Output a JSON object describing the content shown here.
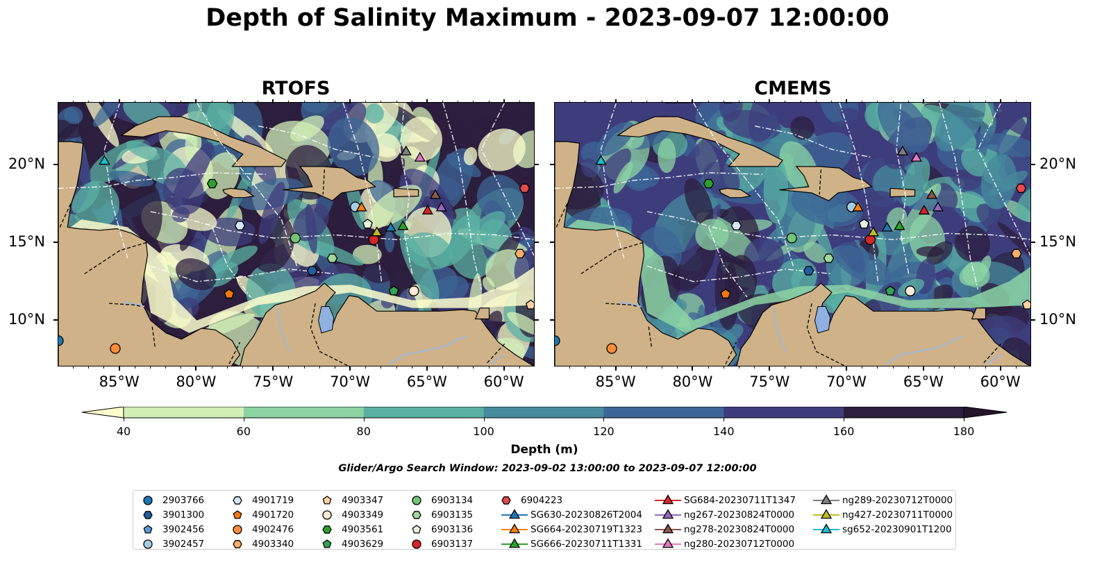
{
  "title": "Depth of Salinity Maximum - 2023-09-07 12:00:00",
  "panels": [
    {
      "title": "RTOFS"
    },
    {
      "title": "CMEMS"
    }
  ],
  "lon_ticks": [
    "85°W",
    "80°W",
    "75°W",
    "70°W",
    "65°W",
    "60°W"
  ],
  "lat_ticks": [
    "20°N",
    "15°N",
    "10°N"
  ],
  "map_extent": {
    "lon": [
      -89,
      -58
    ],
    "lat": [
      7,
      24
    ]
  },
  "colorbar": {
    "label": "Depth (m)",
    "ticks": [
      "40",
      "60",
      "80",
      "100",
      "120",
      "140",
      "160",
      "180"
    ],
    "colors": [
      "#fbfdcc",
      "#d2efb6",
      "#8cd3a4",
      "#5ab0a3",
      "#478b9e",
      "#3c6696",
      "#3d3d7c",
      "#2c1e3d",
      "#24152b"
    ],
    "extend": "both"
  },
  "colors": {
    "land": "#cfb287",
    "water_body": "#8fb0e1",
    "river": "#9fb8db"
  },
  "search_window": "Glider/Argo Search Window: 2023-09-02 13:00:00 to 2023-09-07 12:00:00",
  "legend": [
    {
      "name": "2903766",
      "marker": "circle",
      "color": "#1f77b4"
    },
    {
      "name": "3901300",
      "marker": "hexagon",
      "color": "#1f5fa0"
    },
    {
      "name": "3902456",
      "marker": "pentagon",
      "color": "#5a9bd5"
    },
    {
      "name": "3902457",
      "marker": "circle",
      "color": "#a6cee3"
    },
    {
      "name": "4901719",
      "marker": "hexagon",
      "color": "#d6e8f8"
    },
    {
      "name": "4901720",
      "marker": "pentagon",
      "color": "#f4780e"
    },
    {
      "name": "4902476",
      "marker": "circle",
      "color": "#fd8d3c"
    },
    {
      "name": "4903340",
      "marker": "hexagon",
      "color": "#fdae6b"
    },
    {
      "name": "4903347",
      "marker": "pentagon",
      "color": "#fdd0a2"
    },
    {
      "name": "4903349",
      "marker": "circle",
      "color": "#feead6"
    },
    {
      "name": "4903561",
      "marker": "hexagon",
      "color": "#2ca02c"
    },
    {
      "name": "4903629",
      "marker": "pentagon",
      "color": "#31a354"
    },
    {
      "name": "6903134",
      "marker": "circle",
      "color": "#74c476"
    },
    {
      "name": "6903135",
      "marker": "hexagon",
      "color": "#a1d99b"
    },
    {
      "name": "6903136",
      "marker": "pentagon",
      "color": "#e5f5e0"
    },
    {
      "name": "6903137",
      "marker": "circle",
      "color": "#d62728"
    },
    {
      "name": "6904223",
      "marker": "hexagon",
      "color": "#e34a4a"
    },
    {
      "name": "SG630-20230826T2004",
      "marker": "triangle",
      "color": "#1f77b4"
    },
    {
      "name": "SG664-20230719T1323",
      "marker": "triangle",
      "color": "#ff7f0e"
    },
    {
      "name": "SG666-20230711T1331",
      "marker": "triangle",
      "color": "#2ca02c"
    },
    {
      "name": "SG684-20230711T1347",
      "marker": "triangle",
      "color": "#d62728"
    },
    {
      "name": "ng267-20230824T0000",
      "marker": "triangle",
      "color": "#9467bd"
    },
    {
      "name": "ng278-20230824T0000",
      "marker": "triangle",
      "color": "#8c564b"
    },
    {
      "name": "ng280-20230712T0000",
      "marker": "triangle",
      "color": "#e377c2"
    },
    {
      "name": "ng289-20230712T0000",
      "marker": "triangle",
      "color": "#7f7f7f"
    },
    {
      "name": "ng427-20230711T0000",
      "marker": "triangle",
      "color": "#bcbd22"
    },
    {
      "name": "sg652-20230901T1200",
      "marker": "triangle",
      "color": "#17becf"
    }
  ],
  "observations": [
    {
      "name": "2903766",
      "lon": -89.0,
      "lat": 8.7
    },
    {
      "name": "3901300",
      "lon": -72.5,
      "lat": 13.2
    },
    {
      "name": "3902457",
      "lon": -69.7,
      "lat": 17.3
    },
    {
      "name": "4901719",
      "lon": -77.2,
      "lat": 16.1
    },
    {
      "name": "4901720",
      "lon": -77.9,
      "lat": 11.7
    },
    {
      "name": "4902476",
      "lon": -85.3,
      "lat": 8.2
    },
    {
      "name": "4903340",
      "lon": -59.0,
      "lat": 14.3
    },
    {
      "name": "4903347",
      "lon": -58.3,
      "lat": 11.0
    },
    {
      "name": "4903349",
      "lon": -65.9,
      "lat": 11.9
    },
    {
      "name": "4903561",
      "lon": -79.0,
      "lat": 18.8
    },
    {
      "name": "4903629",
      "lon": -67.2,
      "lat": 11.9
    },
    {
      "name": "6903134",
      "lon": -73.6,
      "lat": 15.3
    },
    {
      "name": "6903135",
      "lon": -71.2,
      "lat": 14.0
    },
    {
      "name": "6903136",
      "lon": -68.9,
      "lat": 16.2
    },
    {
      "name": "6903137",
      "lon": -68.5,
      "lat": 15.2
    },
    {
      "name": "6904223",
      "lon": -58.7,
      "lat": 18.5
    },
    {
      "name": "SG630-20230826T2004",
      "lon": -67.4,
      "lat": 16.0
    },
    {
      "name": "SG664-20230719T1323",
      "lon": -69.3,
      "lat": 17.3
    },
    {
      "name": "SG666-20230711T1331",
      "lon": -66.6,
      "lat": 16.1
    },
    {
      "name": "SG684-20230711T1347",
      "lon": -65.0,
      "lat": 17.1
    },
    {
      "name": "ng267-20230824T0000",
      "lon": -64.1,
      "lat": 17.3
    },
    {
      "name": "ng278-20230824T0000",
      "lon": -64.5,
      "lat": 18.1
    },
    {
      "name": "ng280-20230712T0000",
      "lon": -65.5,
      "lat": 20.5
    },
    {
      "name": "ng289-20230712T0000",
      "lon": -66.4,
      "lat": 20.9
    },
    {
      "name": "ng427-20230711T0000",
      "lon": -68.3,
      "lat": 15.7
    },
    {
      "name": "sg652-20230901T1200",
      "lon": -86.0,
      "lat": 20.3
    }
  ]
}
